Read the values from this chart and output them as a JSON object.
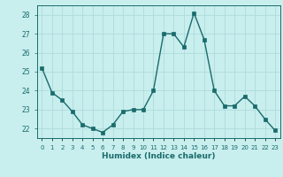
{
  "x": [
    0,
    1,
    2,
    3,
    4,
    5,
    6,
    7,
    8,
    9,
    10,
    11,
    12,
    13,
    14,
    15,
    16,
    17,
    18,
    19,
    20,
    21,
    22,
    23
  ],
  "y": [
    25.2,
    23.9,
    23.5,
    22.9,
    22.2,
    22.0,
    21.8,
    22.2,
    22.9,
    23.0,
    23.0,
    24.0,
    27.0,
    27.0,
    26.3,
    28.1,
    26.7,
    24.0,
    23.2,
    23.2,
    23.7,
    23.2,
    22.5,
    21.9
  ],
  "color": "#1a6b6b",
  "bg_color": "#c8eeee",
  "grid_color": "#b0dcdc",
  "xlabel": "Humidex (Indice chaleur)",
  "ylim": [
    21.5,
    28.5
  ],
  "xlim": [
    -0.5,
    23.5
  ],
  "yticks": [
    22,
    23,
    24,
    25,
    26,
    27,
    28
  ],
  "xtick_labels": [
    "0",
    "1",
    "2",
    "3",
    "4",
    "5",
    "6",
    "7",
    "8",
    "9",
    "10",
    "11",
    "12",
    "13",
    "14",
    "15",
    "16",
    "17",
    "18",
    "19",
    "20",
    "21",
    "22",
    "23"
  ],
  "linewidth": 1.0,
  "markersize": 2.5
}
